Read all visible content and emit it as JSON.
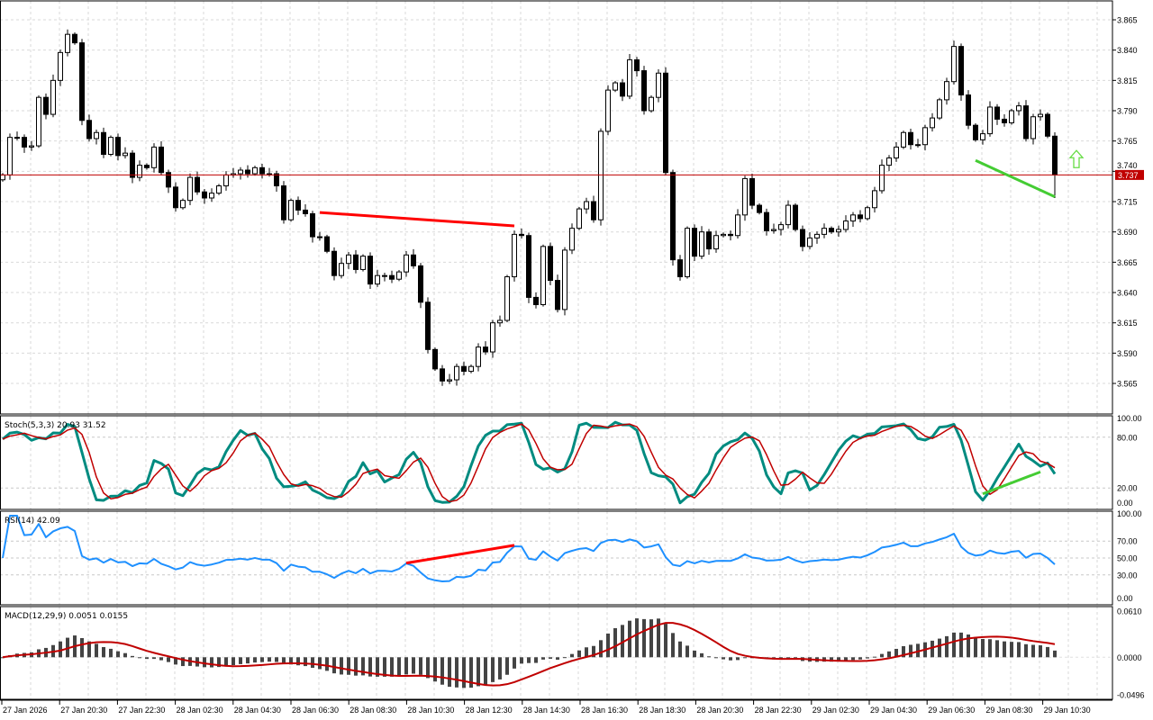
{
  "colors": {
    "background": "#ffffff",
    "grid": "#d9d9d9",
    "bull_body": "#ffffff",
    "bear_body": "#000000",
    "price_line": "#c00000",
    "price_label_bg": "#c00000",
    "stoch_main": "#008b80",
    "stoch_signal": "#c00000",
    "rsi": "#1e90ff",
    "macd_hist": "#444444",
    "macd_signal": "#c00000",
    "bear_divergence": "#ff0000",
    "bull_divergence": "#44cc33",
    "arrow": "#66dd44"
  },
  "main_chart": {
    "current_price": "3.737",
    "current_price_value": 3.737,
    "price_range": [
      3.5435,
      3.8799
    ],
    "price_ticks": [
      "3.865",
      "3.840",
      "3.815",
      "3.790",
      "3.765",
      "3.740",
      "3.715",
      "3.690",
      "3.665",
      "3.640",
      "3.615",
      "3.590",
      "3.565"
    ],
    "first_open": 3.733,
    "wick": 0.004,
    "last_low": 3.718,
    "closes": [
      3.737,
      3.768,
      3.768,
      3.76,
      3.761,
      3.801,
      3.787,
      3.815,
      3.838,
      3.853,
      3.846,
      3.782,
      3.767,
      3.772,
      3.754,
      3.768,
      3.753,
      3.755,
      3.735,
      3.745,
      3.743,
      3.76,
      3.739,
      3.727,
      3.71,
      3.716,
      3.735,
      3.723,
      3.718,
      3.722,
      3.728,
      3.737,
      3.738,
      3.741,
      3.738,
      3.743,
      3.738,
      3.738,
      3.728,
      3.7,
      3.716,
      3.708,
      3.705,
      3.686,
      3.686,
      3.674,
      3.654,
      3.664,
      3.671,
      3.659,
      3.67,
      3.647,
      3.654,
      3.654,
      3.651,
      3.657,
      3.671,
      3.662,
      3.632,
      3.593,
      3.577,
      3.567,
      3.568,
      3.579,
      3.575,
      3.579,
      3.595,
      3.591,
      3.615,
      3.617,
      3.653,
      3.688,
      3.687,
      3.636,
      3.63,
      3.678,
      3.65,
      3.626,
      3.675,
      3.693,
      3.709,
      3.715,
      3.7,
      3.773,
      3.807,
      3.813,
      3.802,
      3.832,
      3.823,
      3.79,
      3.801,
      3.821,
      3.739,
      3.667,
      3.653,
      3.693,
      3.67,
      3.69,
      3.676,
      3.687,
      3.688,
      3.687,
      3.704,
      3.734,
      3.712,
      3.706,
      3.691,
      3.692,
      3.696,
      3.712,
      3.692,
      3.678,
      3.685,
      3.688,
      3.693,
      3.69,
      3.692,
      3.699,
      3.704,
      3.701,
      3.71,
      3.724,
      3.745,
      3.751,
      3.76,
      3.772,
      3.762,
      3.762,
      3.776,
      3.784,
      3.799,
      3.814,
      3.843,
      3.803,
      3.778,
      3.766,
      3.771,
      3.793,
      3.783,
      3.78,
      3.79,
      3.794,
      3.767,
      3.785,
      3.787,
      3.769,
      3.737
    ],
    "bear_divergence_line": {
      "from": {
        "bar": 44,
        "price": 3.706
      },
      "to": {
        "bar": 71,
        "price": 3.695
      }
    },
    "bull_divergence_line": {
      "from": {
        "bar": 135,
        "price": 3.749
      },
      "to": {
        "bar": 146,
        "price": 3.719
      }
    },
    "buy_arrow": {
      "bar": 149,
      "price": 3.749
    }
  },
  "stochastic": {
    "label": "Stoch(5,3,3) 20.93 31.52",
    "ticks": [
      "100.00",
      "80.00",
      "20.00",
      "0.00"
    ],
    "divergence_line": {
      "from": {
        "bar": 136,
        "value": 13
      },
      "to": {
        "bar": 144,
        "value": 39
      }
    }
  },
  "rsi": {
    "label": "RSI(14) 42.09",
    "ticks": [
      "100.00",
      "70.00",
      "50.00",
      "30.00",
      "0.00"
    ],
    "divergence_line": {
      "from": {
        "bar": 56,
        "value": 44
      },
      "to": {
        "bar": 71,
        "value": 65
      }
    }
  },
  "macd": {
    "label": "MACD(12,29,9) 0.0051 0.0155",
    "ticks": [
      "0.0610",
      "0.0000",
      "-0.0496"
    ],
    "range": [
      -0.0496,
      0.061
    ]
  },
  "time_axis": {
    "labels": [
      "27 Jan 2026",
      "27 Jan 20:30",
      "27 Jan 22:30",
      "28 Jan 02:30",
      "28 Jan 04:30",
      "28 Jan 06:30",
      "28 Jan 08:30",
      "28 Jan 10:30",
      "28 Jan 12:30",
      "28 Jan 14:30",
      "28 Jan 16:30",
      "28 Jan 18:30",
      "28 Jan 20:30",
      "28 Jan 22:30",
      "29 Jan 02:30",
      "29 Jan 04:30",
      "29 Jan 06:30",
      "29 Jan 08:30",
      "29 Jan 10:30"
    ]
  }
}
